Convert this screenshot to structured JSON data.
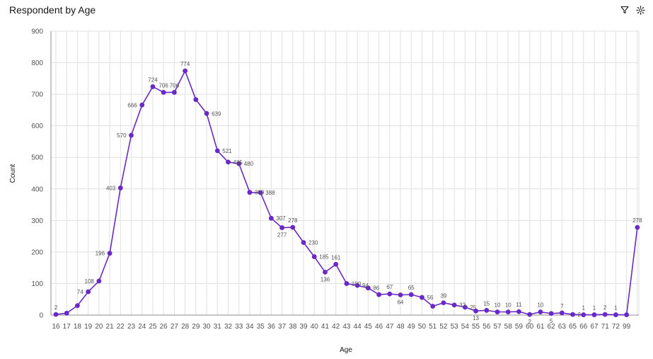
{
  "header": {
    "title": "Respondent by Age"
  },
  "toolbar": {
    "icons": [
      "filter-icon",
      "settings-icon"
    ]
  },
  "colors": {
    "series": "#6929c4",
    "grid": "#e0e0e0",
    "axis": "#8d8d8d",
    "text": "#525252"
  },
  "chart_data": {
    "type": "line",
    "title": "Respondent by Age",
    "xlabel": "Age",
    "ylabel": "Count",
    "ylim": [
      0,
      900
    ],
    "yticks": [
      0,
      100,
      200,
      300,
      400,
      500,
      600,
      700,
      800,
      900
    ],
    "grid": true,
    "categories": [
      "16",
      "17",
      "18",
      "19",
      "20",
      "21",
      "22",
      "23",
      "24",
      "25",
      "26",
      "27",
      "28",
      "29",
      "30",
      "31",
      "32",
      "33",
      "34",
      "35",
      "36",
      "37",
      "38",
      "39",
      "40",
      "41",
      "42",
      "43",
      "44",
      "45",
      "46",
      "47",
      "48",
      "49",
      "50",
      "51",
      "52",
      "53",
      "54",
      "55",
      "56",
      "57",
      "58",
      "59",
      "60",
      "61",
      "62",
      "63",
      "65",
      "66",
      "67",
      "71",
      "72",
      "99",
      ""
    ],
    "values": [
      2,
      6,
      30,
      74,
      108,
      196,
      403,
      570,
      666,
      724,
      706,
      706,
      774,
      683,
      639,
      521,
      485,
      480,
      389,
      388,
      307,
      277,
      278,
      230,
      185,
      136,
      161,
      100,
      94,
      86,
      65,
      67,
      64,
      65,
      56,
      28,
      39,
      32,
      25,
      13,
      15,
      10,
      10,
      11,
      2,
      10,
      5,
      7,
      2,
      1,
      1,
      2,
      1,
      1,
      278
    ],
    "labels": [
      "2",
      "",
      "",
      "74",
      "108",
      "196",
      "403",
      "570",
      "666",
      "724",
      "706",
      "706",
      "774",
      "",
      "639",
      "521",
      "485",
      "480",
      "389",
      "388",
      "307",
      "277",
      "278",
      "230",
      "185",
      "136",
      "161",
      "100",
      "94",
      "86",
      "",
      "67",
      "64",
      "65",
      "56",
      "",
      "39",
      "32",
      "25",
      "13",
      "15",
      "10",
      "10",
      "11",
      "2",
      "10",
      "5",
      "7",
      "2",
      "1",
      "1",
      "2",
      "1",
      "",
      "278"
    ]
  }
}
